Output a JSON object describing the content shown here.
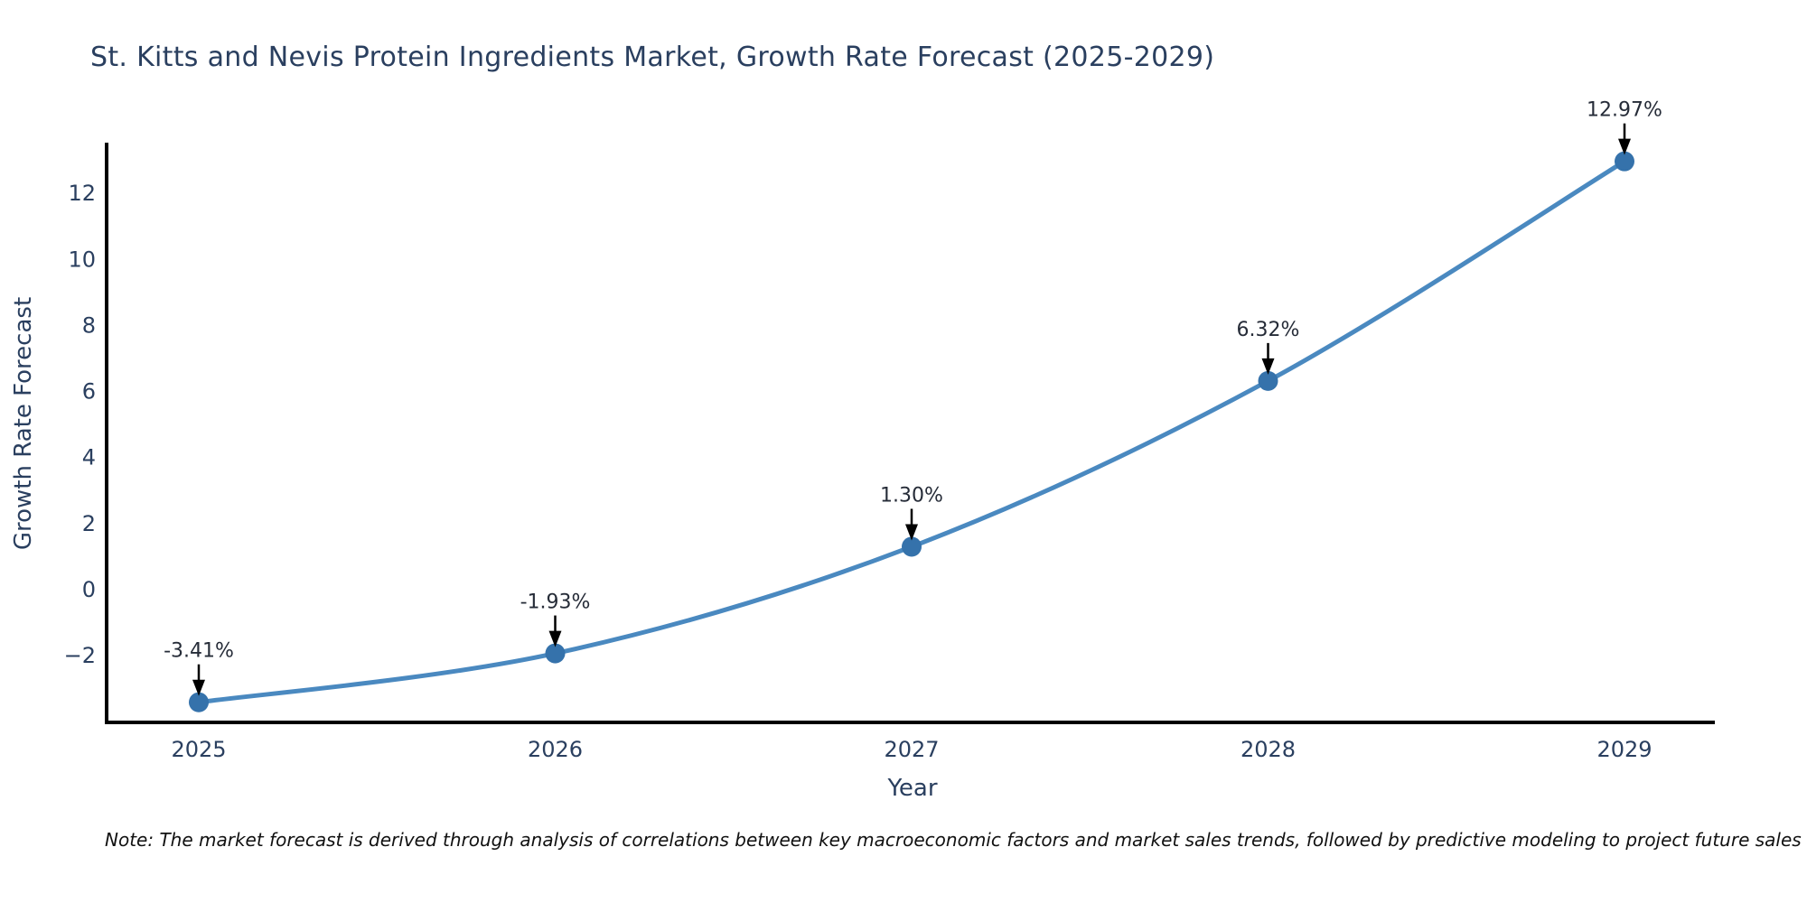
{
  "page": {
    "title": "St. Kitts and Nevis Protein Ingredients Market, Growth Rate Forecast (2025-2029)",
    "note": "Note: The market forecast is derived through analysis of correlations between key macroeconomic factors and market sales trends, followed by predictive modeling to project future sales"
  },
  "chart_data": {
    "type": "line",
    "title": "St. Kitts and Nevis Protein Ingredients Market, Growth Rate Forecast (2025-2029)",
    "xlabel": "Year",
    "ylabel": "Growth Rate Forecast",
    "x": [
      2025,
      2026,
      2027,
      2028,
      2029
    ],
    "values": [
      -3.41,
      -1.93,
      1.3,
      6.32,
      12.97
    ],
    "point_labels": [
      "-3.41%",
      "-1.93%",
      "1.30%",
      "6.32%",
      "12.97%"
    ],
    "yticks": [
      -2,
      0,
      2,
      4,
      6,
      8,
      10,
      12
    ],
    "ylim": [
      -4.05,
      13.55
    ],
    "grid": false,
    "legend": false,
    "smooth_curve": true,
    "annotation_arrows": true,
    "colors": {
      "line": "#4a89c0",
      "marker": "#3572ab",
      "axis": "#000000",
      "tick_text": "#2a3f5f",
      "annotation_text": "#262c38",
      "arrow": "#000000",
      "background": "#ffffff"
    }
  }
}
